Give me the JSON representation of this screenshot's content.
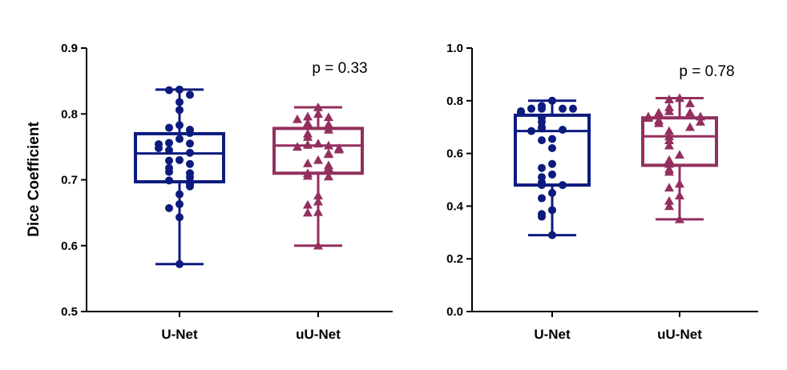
{
  "colors": {
    "unet": "#0d1b7e",
    "uunet": "#932f5e",
    "axis": "#000000"
  },
  "chart_data": [
    {
      "type": "box",
      "ylabel": "Dice Coefficient",
      "ylim": [
        0.5,
        0.9
      ],
      "yticks": [
        "0.5",
        "0.6",
        "0.7",
        "0.8",
        "0.9"
      ],
      "categories": [
        "U-Net",
        "uU-Net"
      ],
      "annotation": "p = 0.33",
      "series": [
        {
          "category": "U-Net",
          "marker": "circle",
          "min": 0.572,
          "q1": 0.697,
          "median": 0.74,
          "q3": 0.77,
          "max": 0.837,
          "points": [
            0.837,
            0.836,
            0.829,
            0.818,
            0.806,
            0.783,
            0.779,
            0.776,
            0.771,
            0.762,
            0.756,
            0.755,
            0.754,
            0.748,
            0.745,
            0.741,
            0.73,
            0.729,
            0.724,
            0.718,
            0.712,
            0.71,
            0.704,
            0.699,
            0.697,
            0.693,
            0.69,
            0.678,
            0.663,
            0.657,
            0.643,
            0.572
          ]
        },
        {
          "category": "uU-Net",
          "marker": "triangle",
          "min": 0.6,
          "q1": 0.71,
          "median": 0.752,
          "q3": 0.778,
          "max": 0.81,
          "points": [
            0.81,
            0.8,
            0.796,
            0.795,
            0.792,
            0.786,
            0.784,
            0.781,
            0.776,
            0.77,
            0.765,
            0.755,
            0.753,
            0.752,
            0.75,
            0.748,
            0.746,
            0.74,
            0.739,
            0.73,
            0.725,
            0.722,
            0.718,
            0.71,
            0.706,
            0.705,
            0.676,
            0.667,
            0.662,
            0.651,
            0.65,
            0.6
          ]
        }
      ]
    },
    {
      "type": "box",
      "ylabel": "",
      "ylim": [
        0.0,
        1.0
      ],
      "yticks": [
        "0.0",
        "0.2",
        "0.4",
        "0.6",
        "0.8",
        "1.0"
      ],
      "categories": [
        "U-Net",
        "uU-Net"
      ],
      "annotation": "p = 0.78",
      "series": [
        {
          "category": "U-Net",
          "marker": "circle",
          "min": 0.29,
          "q1": 0.48,
          "median": 0.685,
          "q3": 0.745,
          "max": 0.8,
          "points": [
            0.8,
            0.78,
            0.77,
            0.77,
            0.77,
            0.77,
            0.76,
            0.755,
            0.735,
            0.72,
            0.7,
            0.695,
            0.69,
            0.685,
            0.655,
            0.65,
            0.62,
            0.56,
            0.545,
            0.52,
            0.51,
            0.49,
            0.48,
            0.48,
            0.45,
            0.43,
            0.385,
            0.37,
            0.36,
            0.29
          ]
        },
        {
          "category": "uU-Net",
          "marker": "triangle",
          "min": 0.35,
          "q1": 0.555,
          "median": 0.665,
          "q3": 0.735,
          "max": 0.81,
          "points": [
            0.81,
            0.805,
            0.79,
            0.775,
            0.76,
            0.755,
            0.755,
            0.75,
            0.74,
            0.74,
            0.735,
            0.725,
            0.72,
            0.715,
            0.7,
            0.685,
            0.665,
            0.65,
            0.63,
            0.595,
            0.575,
            0.56,
            0.54,
            0.53,
            0.485,
            0.47,
            0.44,
            0.42,
            0.4,
            0.35
          ]
        }
      ]
    }
  ]
}
